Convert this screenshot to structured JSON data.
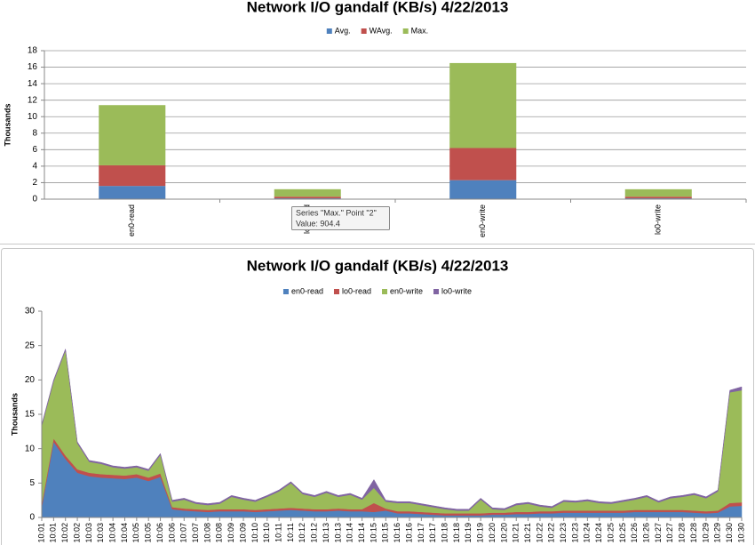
{
  "chart_data": [
    {
      "type": "bar",
      "stacked": true,
      "title": "Network I/O gandalf (KB/s)  4/22/2013",
      "y_label": "Thousands",
      "categories": [
        "en0-read",
        "lo0-read",
        "en0-write",
        "lo0-write"
      ],
      "series": [
        {
          "name": "Avg.",
          "color": "#4f81bd",
          "values": [
            1.6,
            0.1,
            2.3,
            0.1
          ]
        },
        {
          "name": "WAvg.",
          "color": "#c0504d",
          "values": [
            2.5,
            0.2,
            3.9,
            0.2
          ]
        },
        {
          "name": "Max.",
          "color": "#9bbb59",
          "values": [
            7.3,
            0.9044,
            10.3,
            0.9
          ]
        }
      ],
      "ylim": [
        0,
        18
      ],
      "yticks": [
        0,
        2,
        4,
        6,
        8,
        10,
        12,
        14,
        16,
        18
      ],
      "grid": true,
      "legend": "top",
      "tooltip": {
        "title": "Series \"Max.\" Point \"2\"",
        "value": "Value: 904.4"
      }
    },
    {
      "type": "area",
      "stacked": true,
      "title": "Network I/O gandalf (KB/s)  4/22/2013",
      "y_label": "Thousands",
      "categories": [
        "10:01",
        "10:01",
        "10:02",
        "10:02",
        "10:03",
        "10:03",
        "10:04",
        "10:04",
        "10:05",
        "10:05",
        "10:06",
        "10:06",
        "10:07",
        "10:07",
        "10:08",
        "10:08",
        "10:09",
        "10:09",
        "10:10",
        "10:10",
        "10:11",
        "10:11",
        "10:12",
        "10:12",
        "10:13",
        "10:13",
        "10:14",
        "10:14",
        "10:15",
        "10:15",
        "10:16",
        "10:16",
        "10:17",
        "10:17",
        "10:18",
        "10:18",
        "10:19",
        "10:19",
        "10:20",
        "10:20",
        "10:21",
        "10:21",
        "10:22",
        "10:22",
        "10:23",
        "10:23",
        "10:24",
        "10:24",
        "10:25",
        "10:25",
        "10:26",
        "10:26",
        "10:27",
        "10:27",
        "10:28",
        "10:28",
        "10:29",
        "10:29",
        "10:30",
        "10:30"
      ],
      "series": [
        {
          "name": "en0-read",
          "color": "#4f81bd",
          "values": [
            1.5,
            11,
            8.5,
            6.5,
            6,
            5.8,
            5.7,
            5.6,
            5.8,
            5.3,
            5.9,
            1.2,
            1,
            0.9,
            0.8,
            0.9,
            0.9,
            0.9,
            0.8,
            0.9,
            1,
            1.1,
            1,
            0.9,
            0.9,
            1,
            0.9,
            0.9,
            0.8,
            1,
            0.6,
            0.6,
            0.5,
            0.4,
            0.3,
            0.3,
            0.3,
            0.3,
            0.4,
            0.4,
            0.5,
            0.5,
            0.6,
            0.6,
            0.7,
            0.7,
            0.7,
            0.7,
            0.7,
            0.7,
            0.8,
            0.8,
            0.8,
            0.8,
            0.8,
            0.7,
            0.6,
            0.7,
            1.6,
            1.7
          ]
        },
        {
          "name": "lo0-read",
          "color": "#c0504d",
          "values": [
            0.5,
            0.5,
            0.5,
            0.5,
            0.5,
            0.5,
            0.5,
            0.5,
            0.5,
            0.5,
            0.5,
            0.3,
            0.3,
            0.3,
            0.3,
            0.3,
            0.3,
            0.3,
            0.3,
            0.3,
            0.3,
            0.3,
            0.3,
            0.3,
            0.3,
            0.3,
            0.3,
            0.3,
            1.3,
            0.3,
            0.3,
            0.3,
            0.3,
            0.3,
            0.3,
            0.3,
            0.3,
            0.3,
            0.3,
            0.3,
            0.3,
            0.3,
            0.3,
            0.3,
            0.3,
            0.3,
            0.3,
            0.3,
            0.3,
            0.3,
            0.3,
            0.3,
            0.3,
            0.3,
            0.3,
            0.3,
            0.3,
            0.3,
            0.5,
            0.5
          ]
        },
        {
          "name": "en0-write",
          "color": "#9bbb59",
          "values": [
            11.3,
            8.3,
            15.3,
            3.8,
            1.6,
            1.5,
            1.1,
            1.0,
            1.0,
            1.0,
            2.7,
            0.8,
            1.3,
            0.8,
            0.7,
            0.8,
            1.8,
            1.4,
            1.2,
            1.8,
            2.5,
            3.6,
            2.1,
            1.8,
            2.4,
            1.7,
            2.1,
            1.4,
            2.2,
            1.0,
            1.2,
            1.2,
            1.0,
            0.8,
            0.6,
            0.4,
            0.4,
            2.0,
            0.5,
            0.4,
            1.0,
            1.2,
            0.7,
            0.5,
            1.3,
            1.2,
            1.4,
            1.1,
            1.0,
            1.3,
            1.5,
            1.9,
            1.1,
            1.7,
            1.9,
            2.3,
            1.9,
            2.8,
            16.1,
            16.3
          ]
        },
        {
          "name": "lo0-write",
          "color": "#8064a2",
          "values": [
            0.2,
            0.2,
            0.2,
            0.2,
            0.2,
            0.2,
            0.2,
            0.2,
            0.2,
            0.2,
            0.2,
            0.2,
            0.2,
            0.2,
            0.2,
            0.2,
            0.2,
            0.2,
            0.2,
            0.2,
            0.2,
            0.2,
            0.2,
            0.2,
            0.2,
            0.2,
            0.2,
            0.2,
            1.2,
            0.2,
            0.2,
            0.2,
            0.2,
            0.2,
            0.2,
            0.2,
            0.2,
            0.2,
            0.2,
            0.2,
            0.2,
            0.2,
            0.2,
            0.2,
            0.2,
            0.2,
            0.2,
            0.2,
            0.2,
            0.2,
            0.2,
            0.2,
            0.2,
            0.2,
            0.2,
            0.2,
            0.2,
            0.2,
            0.3,
            0.5
          ]
        }
      ],
      "ylim": [
        0,
        30
      ],
      "yticks": [
        0,
        5,
        10,
        15,
        20,
        25,
        30
      ],
      "grid": false,
      "legend": "top"
    }
  ]
}
